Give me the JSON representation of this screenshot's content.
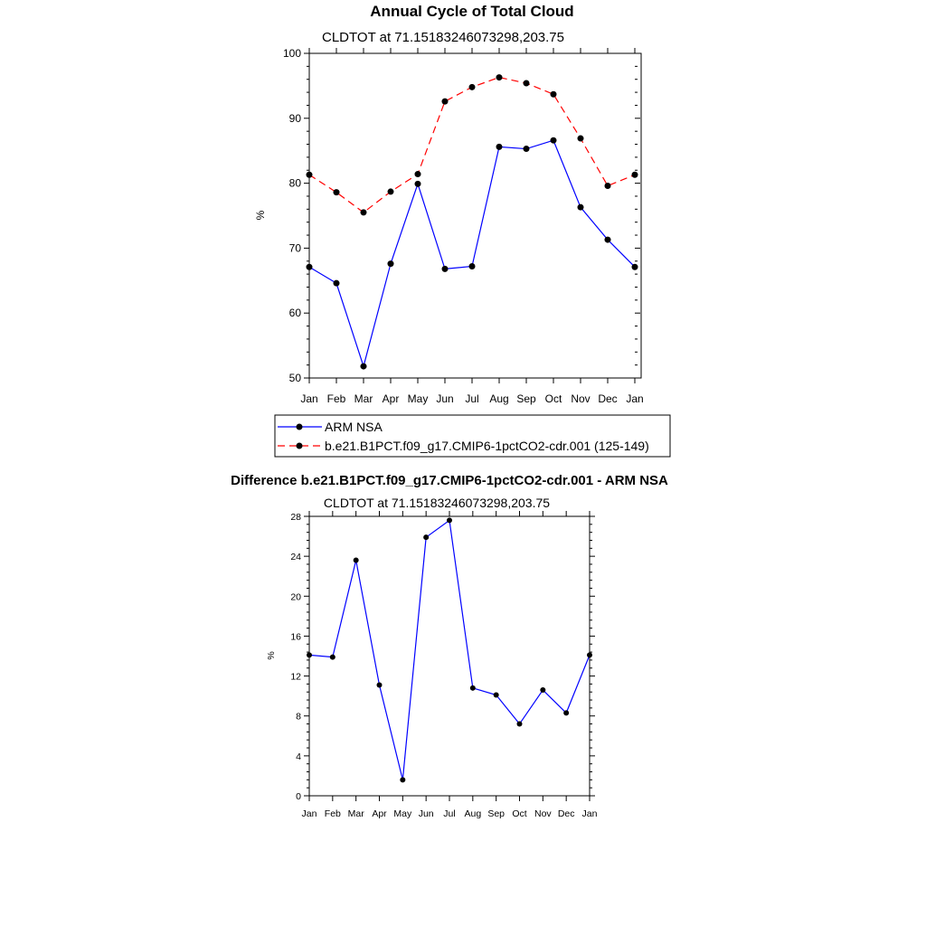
{
  "chart_data": [
    {
      "type": "line",
      "title": "Annual Cycle of Total Cloud",
      "subtitle": "CLDTOT at 71.15183246073298,203.75",
      "xlabel": "",
      "ylabel": "%",
      "categories": [
        "Jan",
        "Feb",
        "Mar",
        "Apr",
        "May",
        "Jun",
        "Jul",
        "Aug",
        "Sep",
        "Oct",
        "Nov",
        "Dec",
        "Jan"
      ],
      "ylim": [
        50,
        100
      ],
      "yticks": [
        50,
        60,
        70,
        80,
        90,
        100
      ],
      "series": [
        {
          "name": "ARM NSA",
          "color": "#0000ff",
          "dash": "solid",
          "values": [
            67.1,
            64.6,
            51.8,
            67.6,
            79.9,
            66.8,
            67.2,
            85.6,
            85.3,
            86.6,
            76.3,
            71.3,
            67.1
          ]
        },
        {
          "name": "b.e21.B1PCT.f09_g17.CMIP6-1pctCO2-cdr.001 (125-149)",
          "color": "#ff0000",
          "dash": "dashed",
          "values": [
            81.3,
            78.6,
            75.5,
            78.7,
            81.4,
            92.6,
            94.8,
            96.3,
            95.4,
            93.7,
            86.9,
            79.6,
            81.3
          ]
        }
      ]
    },
    {
      "type": "line",
      "title": "Difference b.e21.B1PCT.f09_g17.CMIP6-1pctCO2-cdr.001 - ARM NSA",
      "subtitle": "CLDTOT at 71.15183246073298,203.75",
      "xlabel": "",
      "ylabel": "%",
      "categories": [
        "Jan",
        "Feb",
        "Mar",
        "Apr",
        "May",
        "Jun",
        "Jul",
        "Aug",
        "Sep",
        "Oct",
        "Nov",
        "Dec",
        "Jan"
      ],
      "ylim": [
        0,
        28
      ],
      "yticks": [
        0,
        4,
        8,
        12,
        16,
        20,
        24,
        28
      ],
      "series": [
        {
          "name": "Difference",
          "color": "#0000ff",
          "dash": "solid",
          "values": [
            14.1,
            13.9,
            23.6,
            11.1,
            1.6,
            25.9,
            27.6,
            10.8,
            10.1,
            7.2,
            10.6,
            8.3,
            14.1
          ]
        }
      ]
    }
  ]
}
